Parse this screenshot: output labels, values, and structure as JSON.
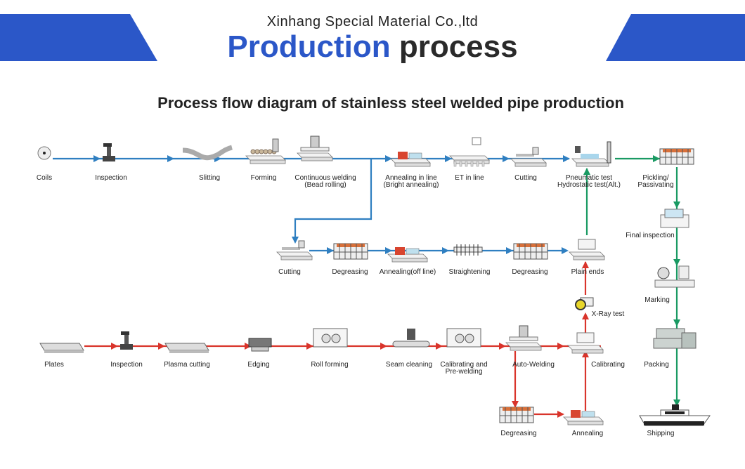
{
  "header": {
    "company": "Xinhang Special Material Co.,ltd",
    "title_highlight": "Production",
    "title_rest": "process",
    "brand_color": "#2b57c8"
  },
  "diagram": {
    "title": "Process flow diagram of stainless steel welded pipe production",
    "colors": {
      "blue_line": "#2f7fc1",
      "green_line": "#1a9a63",
      "red_line": "#d9342b"
    },
    "nodes": [
      {
        "id": "coils",
        "label": [
          "Coils"
        ],
        "icon": "coil"
      },
      {
        "id": "inspection-1",
        "label": [
          "Inspection"
        ],
        "icon": "inspector"
      },
      {
        "id": "slitting",
        "label": [
          "Slitting"
        ],
        "icon": "strip"
      },
      {
        "id": "forming",
        "label": [
          "Forming"
        ],
        "icon": "rollers"
      },
      {
        "id": "continuous-welding",
        "label": [
          "Continuous welding",
          "(Bead rolling)"
        ],
        "icon": "welder"
      },
      {
        "id": "annealing-in-line",
        "label": [
          "Annealing in line",
          "(Bright annealing)"
        ],
        "icon": "furnace"
      },
      {
        "id": "et-in-line",
        "label": [
          "ET in line"
        ],
        "icon": "et"
      },
      {
        "id": "cutting-1",
        "label": [
          "Cutting"
        ],
        "icon": "cutter"
      },
      {
        "id": "pneumatic-test",
        "label": [
          "Pneumatic test",
          "Hydrostatic test(Alt.)"
        ],
        "icon": "tester"
      },
      {
        "id": "pickling",
        "label": [
          "Pickling/",
          "Passivating"
        ],
        "icon": "tank"
      },
      {
        "id": "cutting-2",
        "label": [
          "Cutting"
        ],
        "icon": "cutter"
      },
      {
        "id": "degreasing-1",
        "label": [
          "Degreasing"
        ],
        "icon": "tank"
      },
      {
        "id": "annealing-off-line",
        "label": [
          "Annealing(off line)"
        ],
        "icon": "furnace"
      },
      {
        "id": "straightening",
        "label": [
          "Straightening"
        ],
        "icon": "straightener"
      },
      {
        "id": "degreasing-2",
        "label": [
          "Degreasing"
        ],
        "icon": "tank"
      },
      {
        "id": "plain-ends",
        "label": [
          "Plain ends"
        ],
        "icon": "machine"
      },
      {
        "id": "final-inspection",
        "label": [
          "Final inspection"
        ],
        "icon": "console"
      },
      {
        "id": "marking",
        "label": [
          "Marking"
        ],
        "icon": "marker"
      },
      {
        "id": "x-ray-test",
        "label": [
          "X-Ray test"
        ],
        "icon": "camera"
      },
      {
        "id": "plates",
        "label": [
          "Plates"
        ],
        "icon": "plate"
      },
      {
        "id": "inspection-2",
        "label": [
          "Inspection"
        ],
        "icon": "inspector"
      },
      {
        "id": "plasma-cutting",
        "label": [
          "Plasma cutting"
        ],
        "icon": "plate"
      },
      {
        "id": "edging",
        "label": [
          "Edging"
        ],
        "icon": "edger"
      },
      {
        "id": "roll-forming",
        "label": [
          "Roll forming"
        ],
        "icon": "frame"
      },
      {
        "id": "seam-cleaning",
        "label": [
          "Seam cleaning"
        ],
        "icon": "cleaner"
      },
      {
        "id": "calibrating-prewelding",
        "label": [
          "Calibrating and",
          "Pre-welding"
        ],
        "icon": "frame"
      },
      {
        "id": "auto-welding",
        "label": [
          "Auto-Welding"
        ],
        "icon": "welder"
      },
      {
        "id": "calibrating",
        "label": [
          "Calibrating"
        ],
        "icon": "machine"
      },
      {
        "id": "packing",
        "label": [
          "Packing"
        ],
        "icon": "boxes"
      },
      {
        "id": "degreasing-3",
        "label": [
          "Degreasing"
        ],
        "icon": "tank"
      },
      {
        "id": "annealing",
        "label": [
          "Annealing"
        ],
        "icon": "furnace"
      },
      {
        "id": "shipping",
        "label": [
          "Shipping"
        ],
        "icon": "ship"
      }
    ]
  }
}
